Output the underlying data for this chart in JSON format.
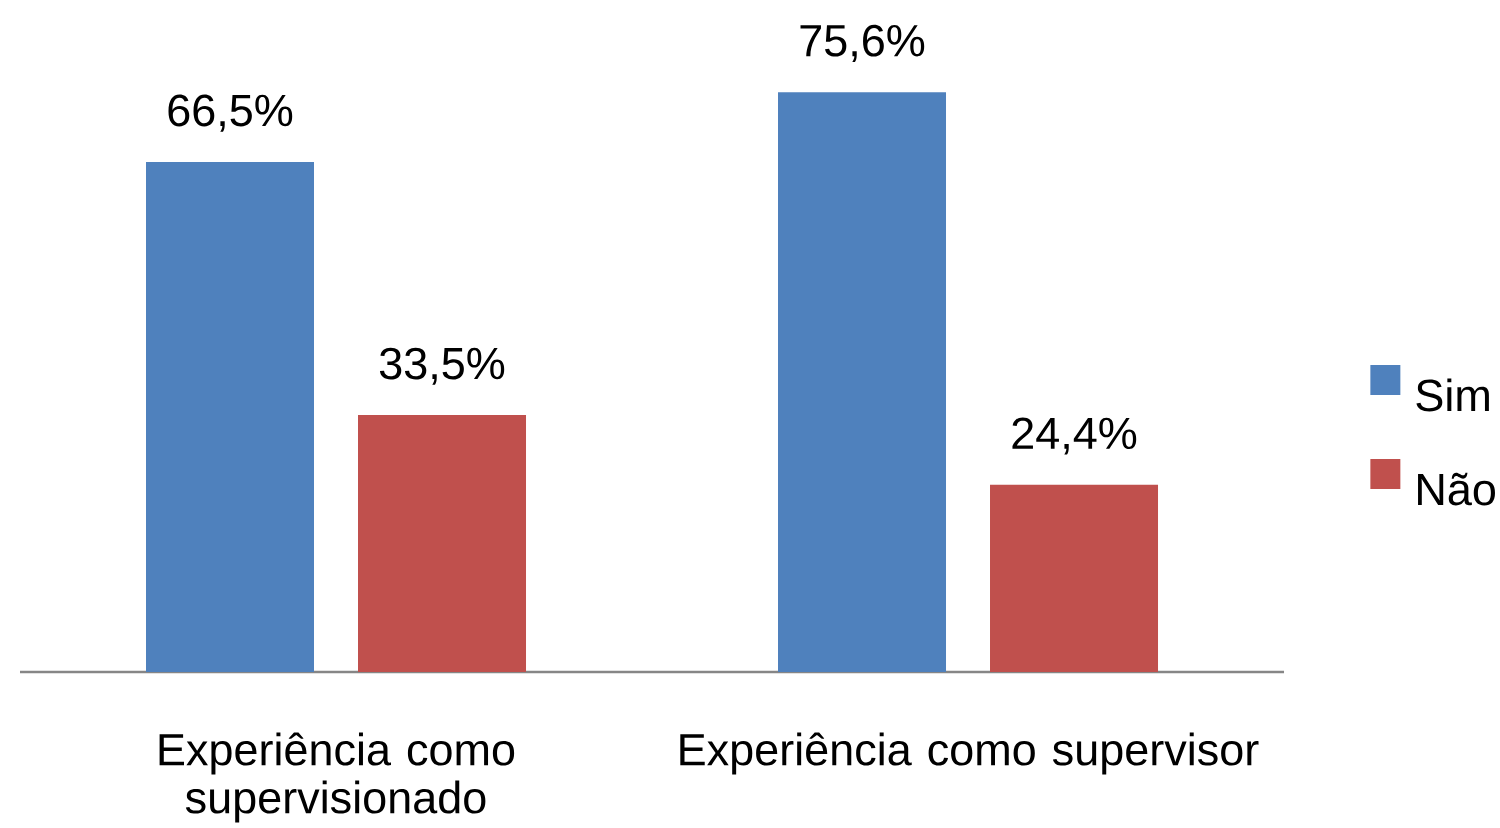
{
  "chart_data": {
    "type": "bar",
    "categories": [
      "Experiência como supervisionado",
      "Experiência como supervisor"
    ],
    "series": [
      {
        "name": "Sim",
        "color": "#4f81bd",
        "values": [
          66.5,
          75.6
        ],
        "value_labels": [
          "66,5%",
          "75,6%"
        ]
      },
      {
        "name": "Não",
        "color": "#c0504d",
        "values": [
          33.5,
          24.4
        ],
        "value_labels": [
          "33,5%",
          "24,4%"
        ]
      }
    ],
    "legend": "right"
  }
}
